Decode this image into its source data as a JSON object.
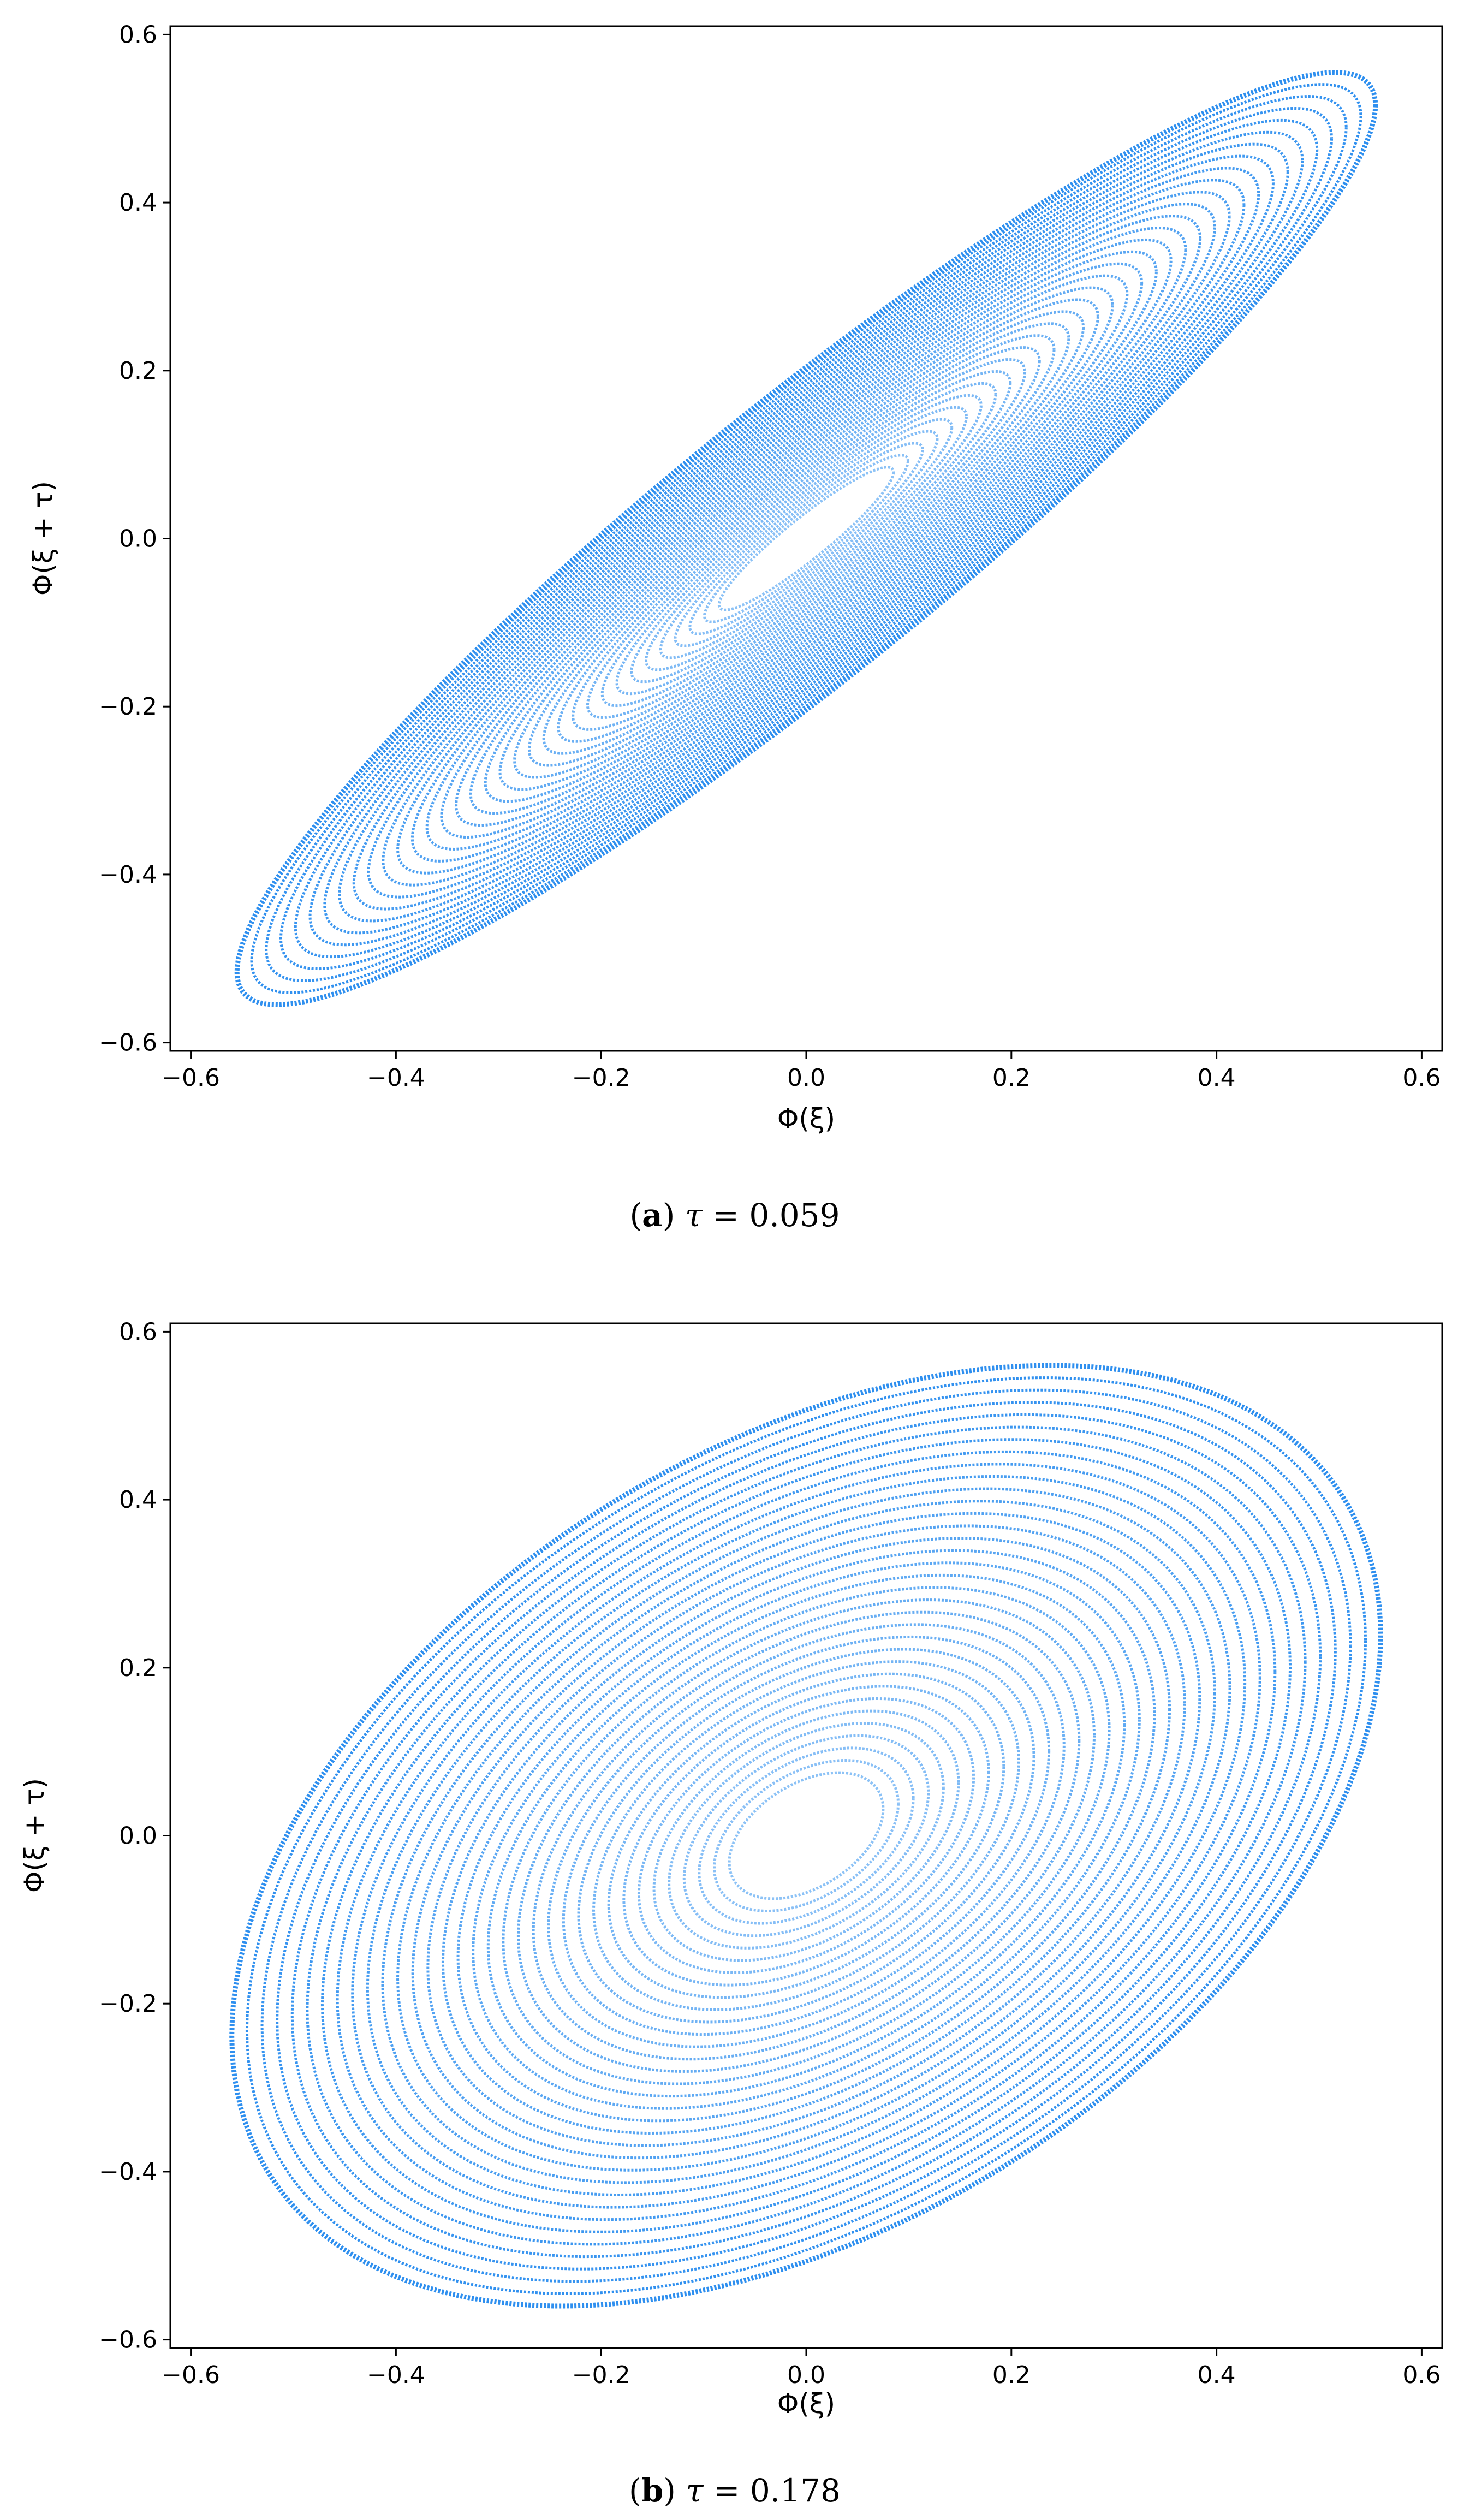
{
  "figure": {
    "panels": [
      {
        "caption": {
          "letter": "a",
          "symbol": "τ",
          "equals": "=",
          "value": "0.059"
        }
      },
      {
        "caption": {
          "letter": "b",
          "symbol": "τ",
          "equals": "=",
          "value": "0.178"
        }
      }
    ]
  },
  "chart_data": [
    {
      "type": "scatter",
      "title": "",
      "xlabel": "Φ(ξ)",
      "ylabel": "Φ(ξ + τ)",
      "xlim": [
        -0.62,
        0.62
      ],
      "ylim": [
        -0.61,
        0.61
      ],
      "xticks": [
        -0.6,
        -0.4,
        -0.2,
        0.0,
        0.2,
        0.4,
        0.6
      ],
      "xtick_labels": [
        "−0.6",
        "−0.4",
        "−0.2",
        "0.0",
        "0.2",
        "0.4",
        "0.6"
      ],
      "yticks": [
        -0.6,
        -0.4,
        -0.2,
        0.0,
        0.2,
        0.4,
        0.6
      ],
      "ytick_labels": [
        "−0.6",
        "−0.4",
        "−0.2",
        "0.0",
        "0.2",
        "0.4",
        "0.6"
      ],
      "grid": false,
      "color": "#2e8fef",
      "phase_lag": 0.06,
      "amplitude_range": [
        0.085,
        0.555
      ],
      "series": [
        {
          "values": []
        }
      ]
    },
    {
      "type": "scatter",
      "title": "",
      "xlabel": "Φ(ξ)",
      "ylabel": "Φ(ξ + τ)",
      "xlim": [
        -0.62,
        0.62
      ],
      "ylim": [
        -0.61,
        0.61
      ],
      "xticks": [
        -0.6,
        -0.4,
        -0.2,
        0.0,
        0.2,
        0.4,
        0.6
      ],
      "xtick_labels": [
        "−0.6",
        "−0.4",
        "−0.2",
        "0.0",
        "0.2",
        "0.4",
        "0.6"
      ],
      "yticks": [
        -0.6,
        -0.4,
        -0.2,
        0.0,
        0.2,
        0.4,
        0.6
      ],
      "ytick_labels": [
        "−0.6",
        "−0.4",
        "−0.2",
        "0.0",
        "0.2",
        "0.4",
        "0.6"
      ],
      "grid": false,
      "color": "#2e8fef",
      "phase_lag": 0.18,
      "amplitude_range": [
        0.075,
        0.56
      ],
      "series": [
        {
          "values": []
        }
      ]
    }
  ]
}
